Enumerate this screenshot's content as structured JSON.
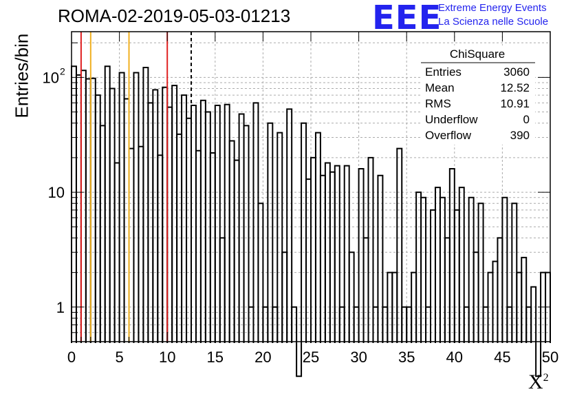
{
  "header": {
    "run_title": "ROMA-02-2019-05-03-01213",
    "logo_text": "EEE",
    "logo_line1": "Extreme Energy Events",
    "logo_line2": "La Scienza nelle Scuole",
    "logo_color": "#2323ee"
  },
  "stats_box": {
    "title": "ChiSquare",
    "rows": [
      {
        "label": "Entries",
        "value": "3060"
      },
      {
        "label": "Mean",
        "value": "12.52"
      },
      {
        "label": "RMS",
        "value": "10.91"
      },
      {
        "label": "Underflow",
        "value": "0"
      },
      {
        "label": "Overflow",
        "value": "390"
      }
    ]
  },
  "chart_data": {
    "type": "bar",
    "style": "step-histogram",
    "title": "ROMA-02-2019-05-03-01213",
    "xlabel": "X",
    "xlabel_superscript": "2",
    "ylabel": "Entries/bin",
    "xlim": [
      0,
      50
    ],
    "ylim": [
      0.5,
      250
    ],
    "yscale": "log",
    "grid": true,
    "bin_width": 0.5,
    "x_ticks": [
      "0",
      "5",
      "10",
      "15",
      "20",
      "25",
      "30",
      "35",
      "40",
      "45",
      "50"
    ],
    "y_ticks": [
      {
        "value": 1,
        "label": "1"
      },
      {
        "value": 10,
        "label": "10"
      },
      {
        "value": 100,
        "label": "10",
        "exponent": "2"
      }
    ],
    "values": [
      125,
      105,
      115,
      97,
      98,
      70,
      38,
      125,
      80,
      18,
      110,
      65,
      24,
      110,
      25,
      122,
      60,
      78,
      21,
      82,
      55,
      85,
      32,
      70,
      44,
      57,
      23,
      63,
      50,
      22,
      57,
      4,
      58,
      28,
      19,
      48,
      38,
      1,
      60,
      8,
      1,
      40,
      1,
      33,
      3,
      53,
      1,
      0,
      40,
      13,
      20,
      33,
      14,
      18,
      15,
      17,
      1,
      17,
      3,
      1,
      16,
      4,
      20,
      1,
      14,
      1,
      2,
      2,
      24,
      1,
      1,
      2,
      10,
      9,
      1,
      7,
      11,
      9,
      4,
      16,
      7,
      11,
      1,
      9,
      3,
      8,
      1,
      2,
      2.5,
      4,
      9,
      1,
      8,
      2,
      2.7,
      1,
      1.5,
      0.2,
      2,
      2
    ],
    "vertical_lines": [
      {
        "x": 1,
        "color": "#e02020",
        "style": "solid"
      },
      {
        "x": 2,
        "color": "#f0b020",
        "style": "solid"
      },
      {
        "x": 6,
        "color": "#f0b020",
        "style": "solid"
      },
      {
        "x": 10,
        "color": "#e02020",
        "style": "solid"
      },
      {
        "x": 12.5,
        "color": "#000000",
        "style": "dashed"
      }
    ]
  }
}
